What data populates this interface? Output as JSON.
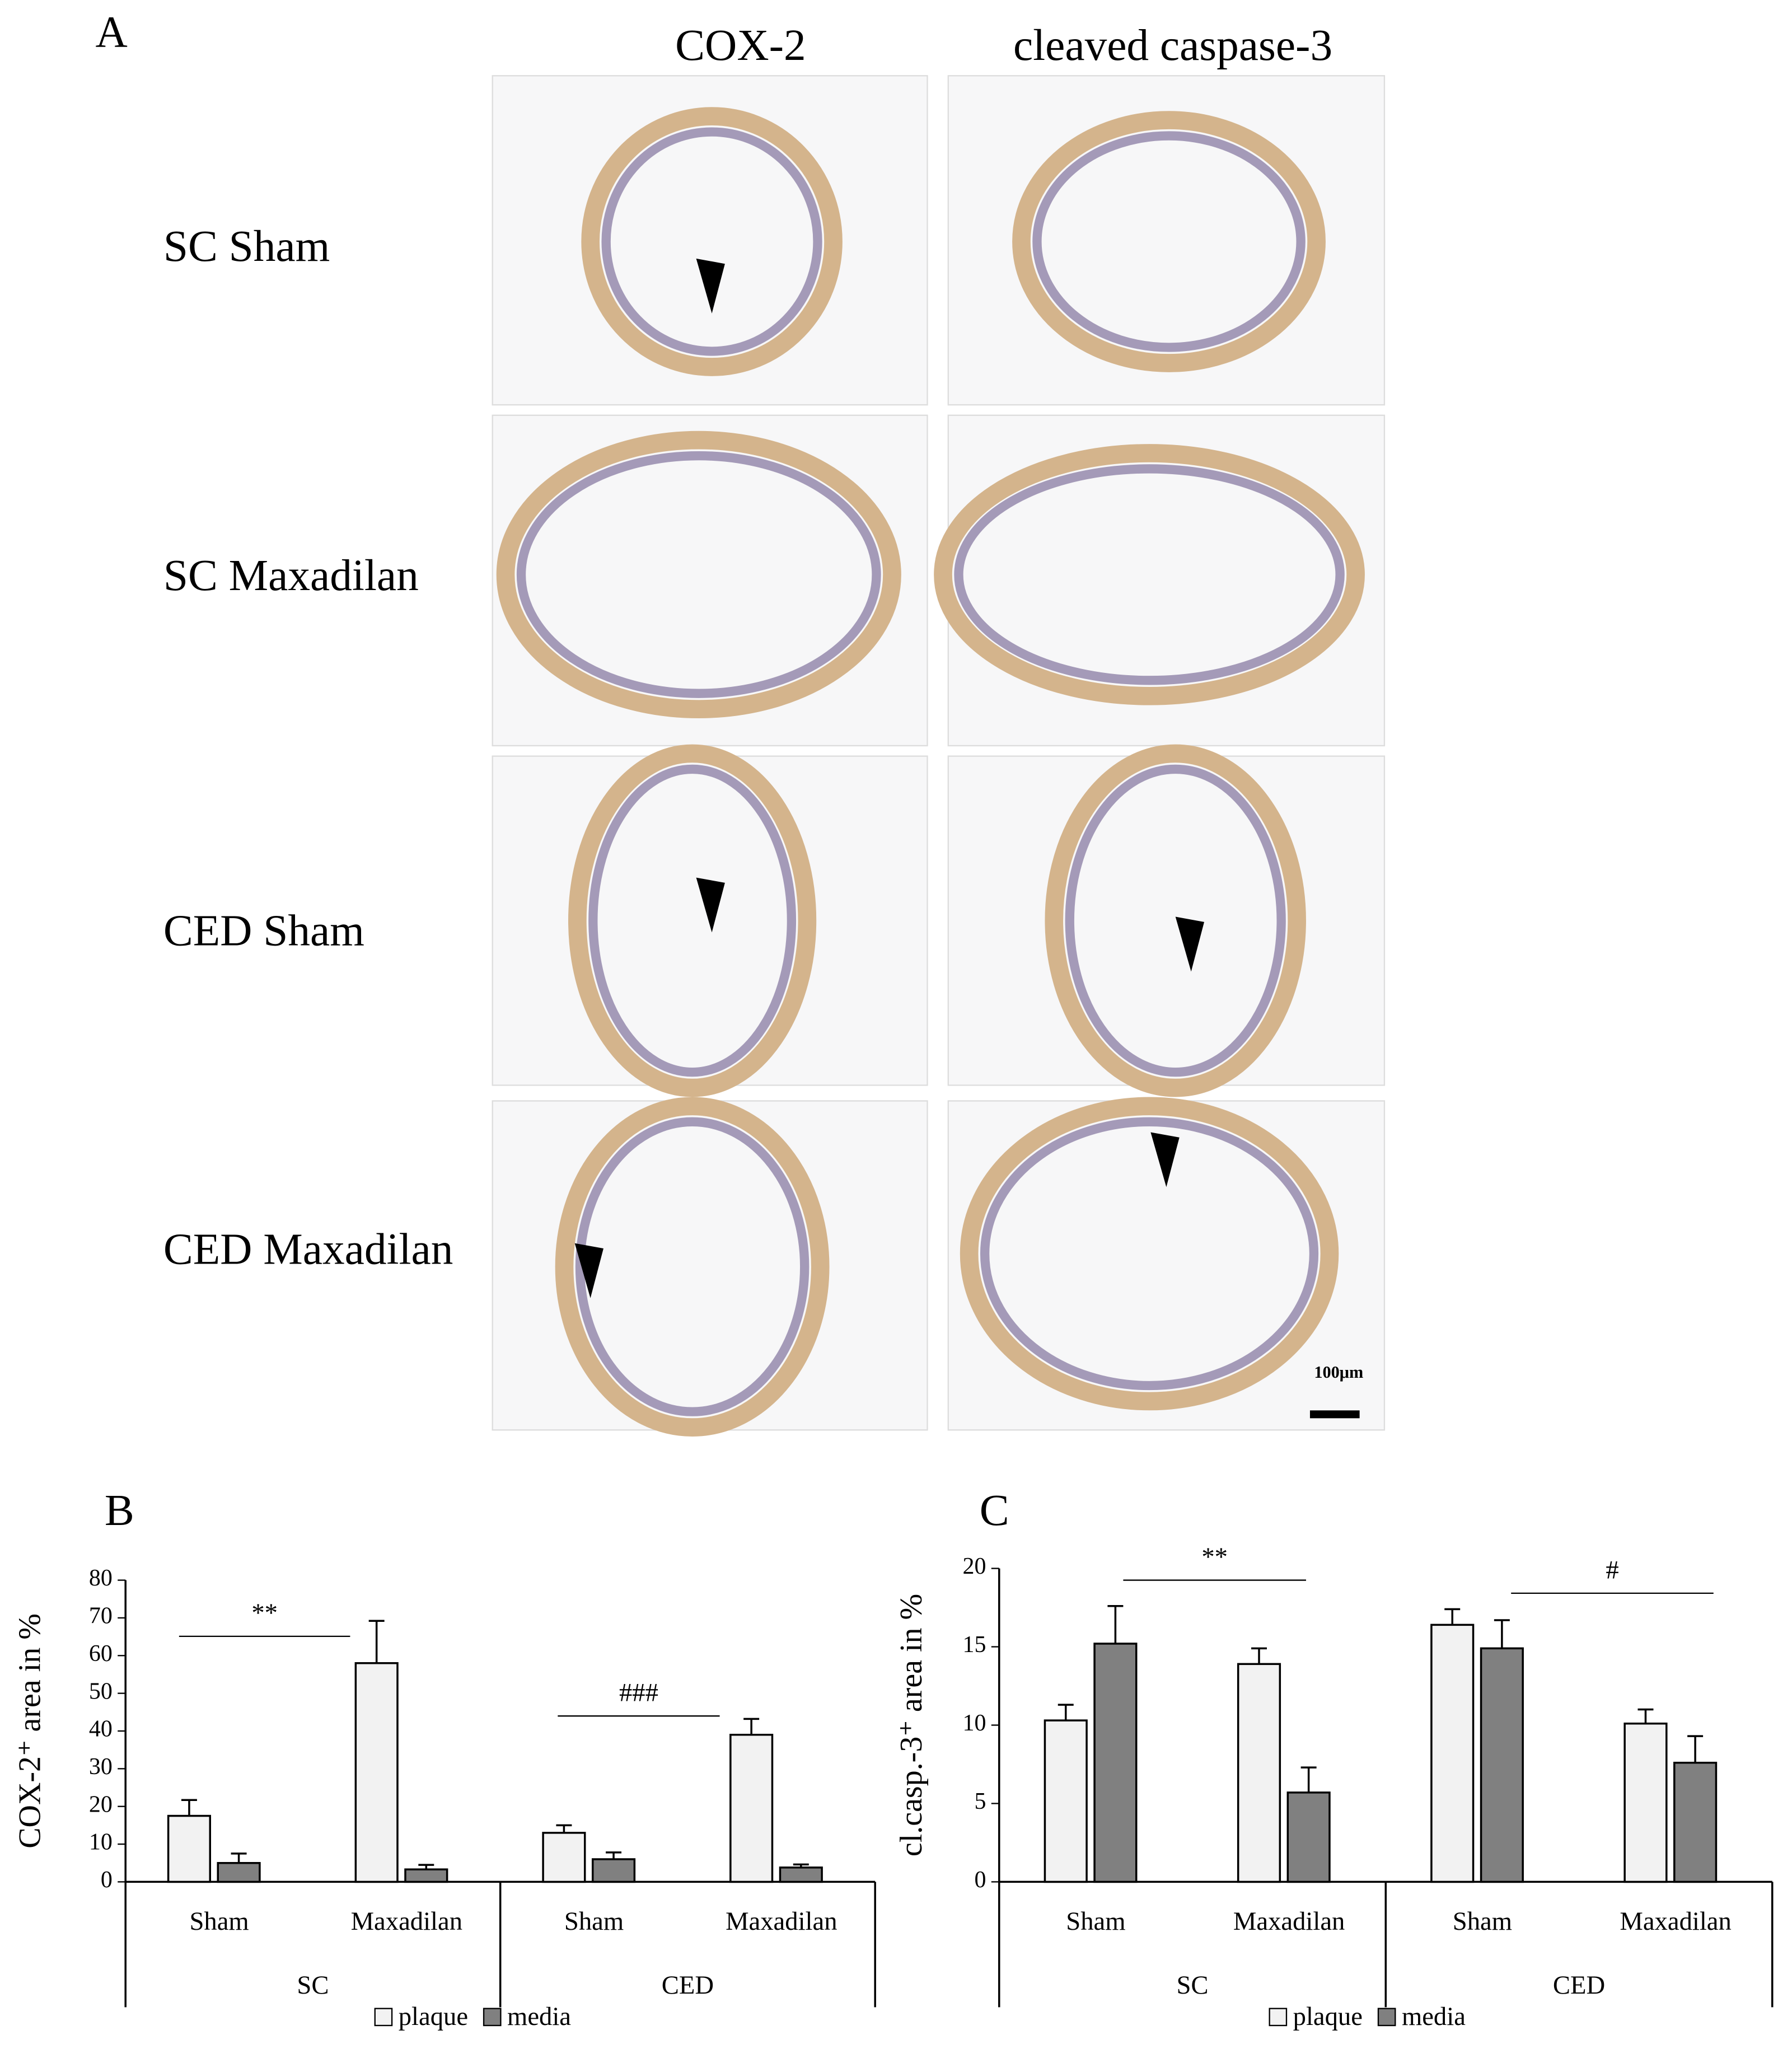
{
  "panel_a": {
    "label": "A",
    "columns": [
      "COX-2",
      "cleaved caspase-3"
    ],
    "rows": [
      "SC Sham",
      "SC Maxadilan",
      "CED Sham",
      "CED Maxadilan"
    ],
    "scale_bar": "100μm"
  },
  "chart_data": [
    {
      "type": "bar",
      "panel_label": "B",
      "y_label": "COX-2⁺ area in %",
      "categories": [
        "Sham",
        "Maxadilan",
        "Sham",
        "Maxadilan"
      ],
      "groups": [
        "SC",
        "CED"
      ],
      "series": [
        {
          "name": "plaque",
          "color": "#f2f2f2",
          "values": [
            17.5,
            58,
            13,
            39
          ],
          "errors": [
            4.2,
            11.2,
            2,
            4.2
          ]
        },
        {
          "name": "media",
          "color": "#808080",
          "values": [
            5,
            3.3,
            6,
            3.8
          ],
          "errors": [
            2.5,
            1.2,
            1.8,
            0.8
          ]
        }
      ],
      "annotations": [
        "**",
        "###"
      ],
      "ylim": [
        0,
        80
      ],
      "yticks": [
        0,
        10,
        20,
        30,
        40,
        50,
        60,
        70,
        80
      ]
    },
    {
      "type": "bar",
      "panel_label": "C",
      "y_label": "cl.casp.-3⁺ area in %",
      "categories": [
        "Sham",
        "Maxadilan",
        "Sham",
        "Maxadilan"
      ],
      "groups": [
        "SC",
        "CED"
      ],
      "series": [
        {
          "name": "plaque",
          "color": "#f2f2f2",
          "values": [
            10.3,
            13.9,
            16.4,
            10.1
          ],
          "errors": [
            1,
            1,
            1,
            0.9
          ]
        },
        {
          "name": "media",
          "color": "#808080",
          "values": [
            15.2,
            5.7,
            14.9,
            7.6
          ],
          "errors": [
            2.4,
            1.6,
            1.8,
            1.7
          ]
        }
      ],
      "annotations": [
        "**",
        "#"
      ],
      "ylim": [
        0,
        20
      ],
      "yticks": [
        0,
        5,
        10,
        15,
        20
      ]
    }
  ]
}
